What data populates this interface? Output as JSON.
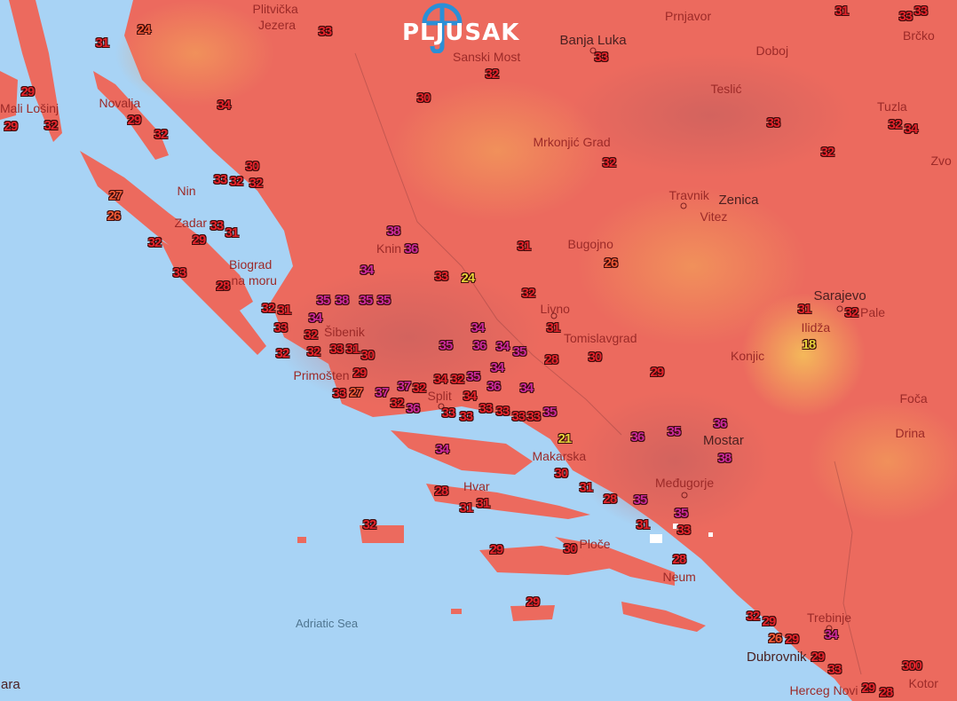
{
  "logo": {
    "text": "PLJUSAK",
    "icon": "umbrella-icon",
    "accent": "#2b8fd6"
  },
  "colors": {
    "sea": "#a8d3f5",
    "land_hot": "#ec6a5e",
    "land_warm": "#f2a15a",
    "temp_red": "#e2242b",
    "temp_magenta": "#c92a9a",
    "temp_orange": "#ef5a36",
    "temp_yellow": "#e6d23a"
  },
  "places": [
    "Plitvička",
    "Jezera",
    "Prnjavor",
    "Brčko",
    "Banja Luka",
    "Sanski Most",
    "Doboj",
    "Teslić",
    "Tuzla",
    "Zvo",
    "Mali Lošinj",
    "Novalja",
    "Nin",
    "Zadar",
    "Biograd",
    "na moru",
    "Mrkonjić Grad",
    "Travnik",
    "Zenica",
    "Vitez",
    "Bugojno",
    "Knin",
    "Sarajevo",
    "Pale",
    "Ilidža",
    "Šibenik",
    "Primošten",
    "Livno",
    "Tomislavgrad",
    "Konjic",
    "Foča",
    "Drina",
    "Mostar",
    "Makarska",
    "Međugorje",
    "Hvar",
    "Ploče",
    "Neum",
    "Trebinje",
    "Dubrovnik",
    "Herceg Novi",
    "Kotor",
    "Adriatic Sea",
    "ara",
    "Split"
  ],
  "temperatures": [
    "31",
    "24",
    "33",
    "32",
    "33",
    "31",
    "33",
    "33",
    "29",
    "29",
    "32",
    "29",
    "34",
    "30",
    "32",
    "33",
    "32",
    "34",
    "32",
    "32",
    "30",
    "33",
    "32",
    "32",
    "27",
    "26",
    "29",
    "33",
    "31",
    "38",
    "36",
    "31",
    "32",
    "33",
    "28",
    "26",
    "34",
    "33",
    "24",
    "38",
    "35",
    "35",
    "32",
    "31",
    "32",
    "31",
    "32",
    "31",
    "33",
    "34",
    "35",
    "32",
    "33",
    "31",
    "32",
    "30",
    "29",
    "34",
    "35",
    "36",
    "34",
    "35",
    "30",
    "28",
    "18",
    "32",
    "33",
    "29",
    "34",
    "35",
    "36",
    "27",
    "37",
    "37",
    "32",
    "34",
    "32",
    "34",
    "34",
    "32",
    "36",
    "33",
    "33",
    "33",
    "33",
    "33",
    "33",
    "35",
    "36",
    "35",
    "36",
    "38",
    "21",
    "34",
    "30",
    "31",
    "28",
    "35",
    "28",
    "31",
    "31",
    "35",
    "33",
    "31",
    "32",
    "29",
    "30",
    "28",
    "29",
    "32",
    "29",
    "34",
    "26",
    "29",
    "29",
    "33",
    "29",
    "28",
    "300"
  ]
}
